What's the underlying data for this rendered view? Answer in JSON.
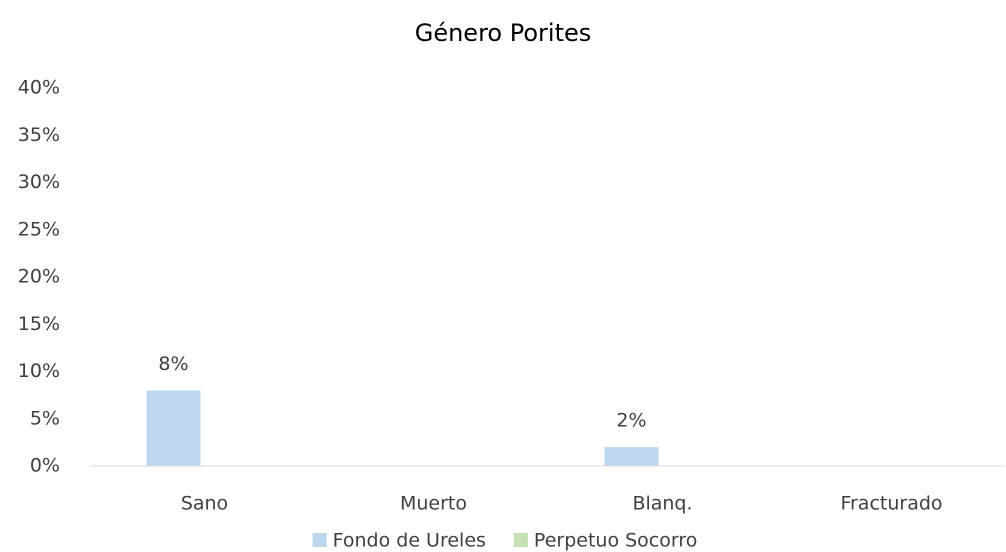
{
  "chart_data": {
    "type": "bar",
    "title": "Género Porites",
    "categories": [
      "Sano",
      "Muerto",
      "Blanq.",
      "Fracturado"
    ],
    "series": [
      {
        "name": "Fondo de Ureles",
        "color": "#bdd7ee",
        "values": [
          8,
          null,
          2,
          null
        ],
        "value_labels": [
          "8%",
          null,
          "2%",
          null
        ]
      },
      {
        "name": "Perpetuo Socorro",
        "color": "#c5e0b4",
        "values": [
          null,
          null,
          null,
          null
        ]
      }
    ],
    "ylim": [
      0,
      40
    ],
    "yticks": [
      {
        "value": 0,
        "label": "0%"
      },
      {
        "value": 5,
        "label": "5%"
      },
      {
        "value": 10,
        "label": "10%"
      },
      {
        "value": 15,
        "label": "15%"
      },
      {
        "value": 20,
        "label": "20%"
      },
      {
        "value": 25,
        "label": "25%"
      },
      {
        "value": 30,
        "label": "30%"
      },
      {
        "value": 35,
        "label": "35%"
      },
      {
        "value": 40,
        "label": "40%"
      }
    ],
    "grid": false,
    "legend": "bottom"
  }
}
